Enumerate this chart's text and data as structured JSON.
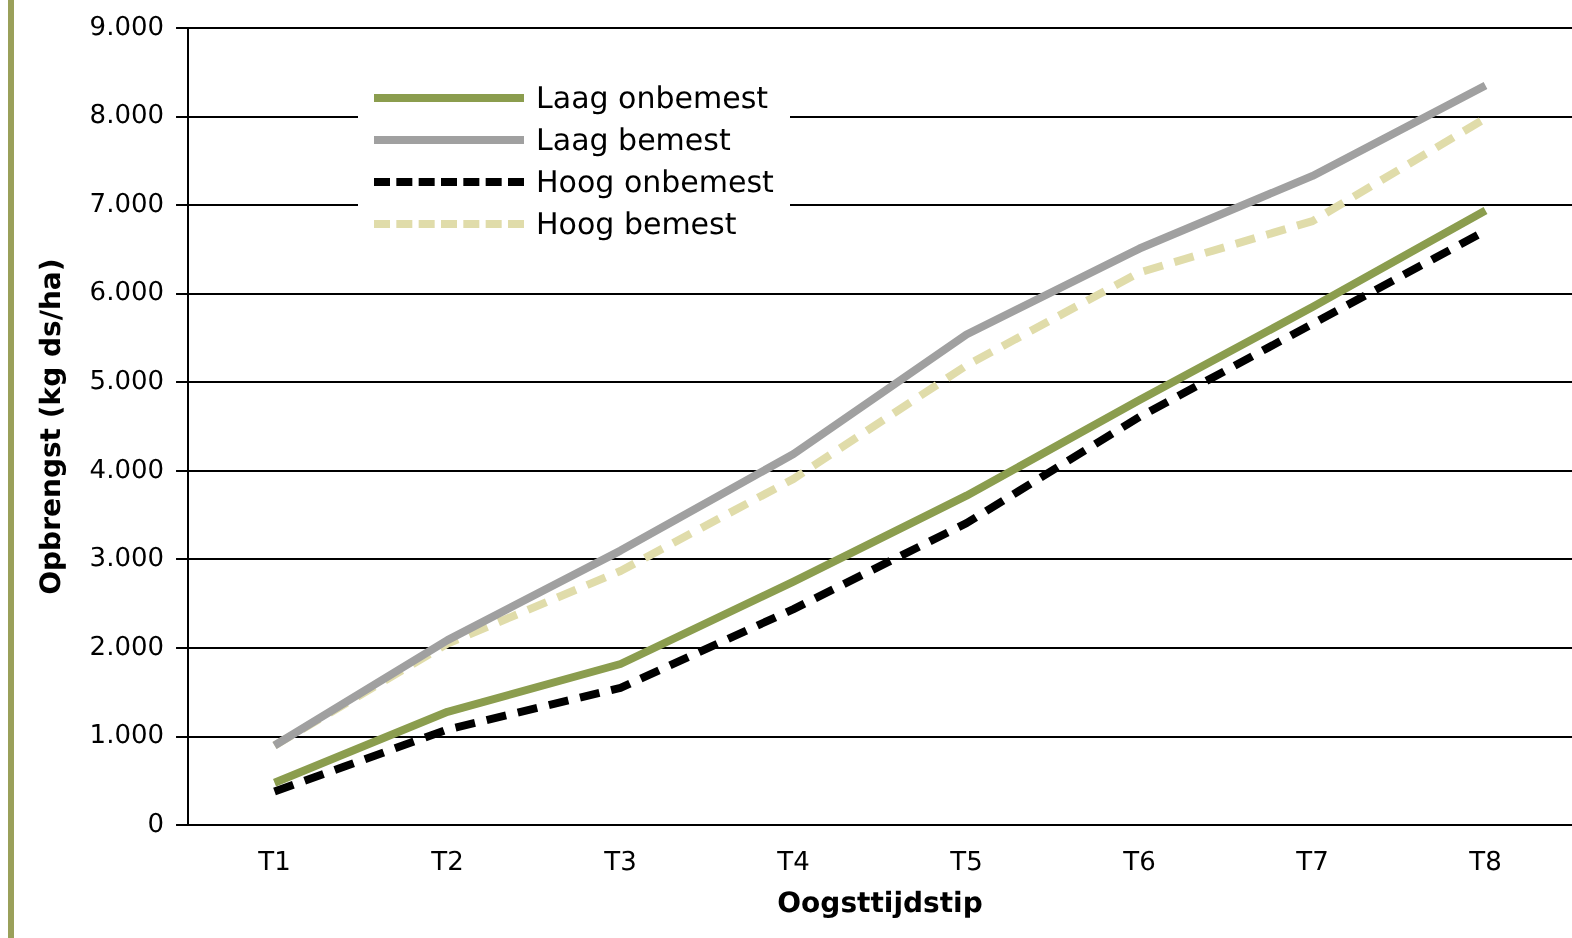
{
  "chart_data": {
    "type": "line",
    "xlabel": "Oogsttijdstip",
    "ylabel": "Opbrengst (kg ds/ha)",
    "categories": [
      "T1",
      "T2",
      "T3",
      "T4",
      "T5",
      "T6",
      "T7",
      "T8"
    ],
    "series": [
      {
        "name": "Laag onbemest",
        "color": "#8b9d4e",
        "line_style": "solid",
        "values": [
          480,
          1280,
          1820,
          2750,
          3720,
          4800,
          5850,
          6940
        ]
      },
      {
        "name": "Laag bemest",
        "color": "#a0a0a0",
        "line_style": "solid",
        "values": [
          900,
          2090,
          3100,
          4190,
          5540,
          6510,
          7330,
          8350
        ]
      },
      {
        "name": "Hoog onbemest",
        "color": "#000000",
        "line_style": "dashed",
        "values": [
          380,
          1080,
          1550,
          2440,
          3410,
          4610,
          5660,
          6710
        ]
      },
      {
        "name": "Hoog bemest",
        "color": "#e0dcaa",
        "line_style": "dashed",
        "values": [
          900,
          2050,
          2870,
          3910,
          5190,
          6240,
          6820,
          7980
        ]
      }
    ],
    "ylim": [
      0,
      9000
    ],
    "yticks": [
      0,
      {
        "value": 1000,
        "label": "1.000"
      },
      {
        "value": 2000,
        "label": "2.000"
      },
      {
        "value": 3000,
        "label": "3.000"
      },
      {
        "value": 4000,
        "label": "4.000"
      },
      {
        "value": 5000,
        "label": "5.000"
      },
      {
        "value": 6000,
        "label": "6.000"
      },
      {
        "value": 7000,
        "label": "7.000"
      },
      {
        "value": 8000,
        "label": "8.000"
      },
      {
        "value": 9000,
        "label": "9.000"
      }
    ],
    "grid": "y",
    "legend": "top left",
    "marker": "none"
  }
}
